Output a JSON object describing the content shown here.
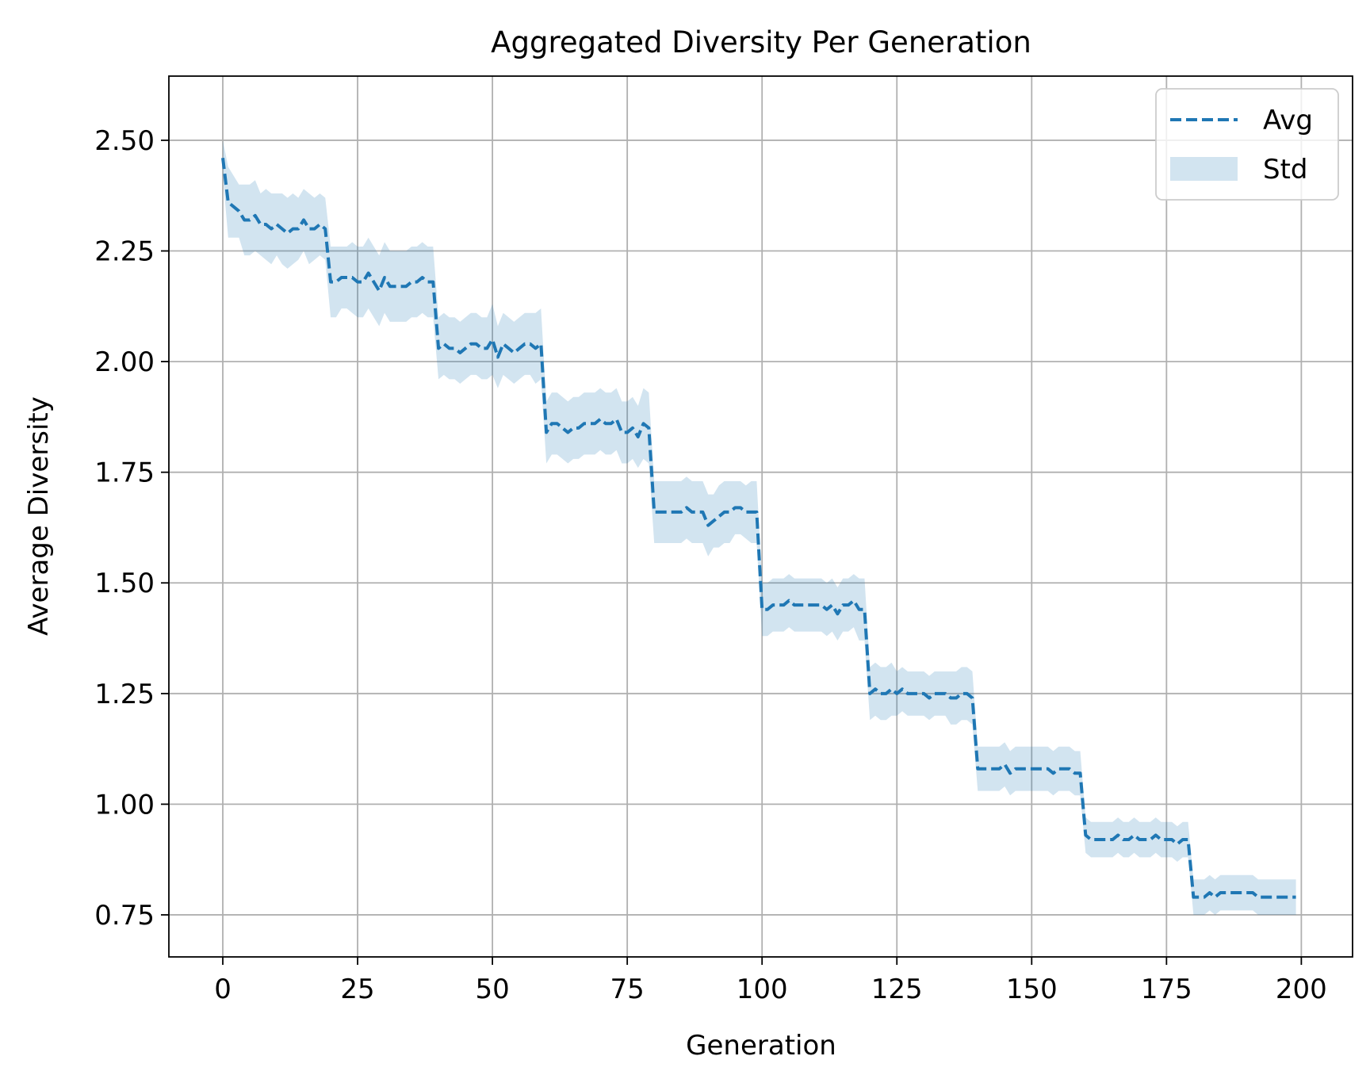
{
  "chart_data": {
    "type": "line",
    "title": "Aggregated Diversity Per Generation",
    "xlabel": "Generation",
    "ylabel": "Average Diversity",
    "xlim": [
      -10,
      209.5
    ],
    "ylim": [
      0.655,
      2.645
    ],
    "x_ticks": [
      0,
      25,
      50,
      75,
      100,
      125,
      150,
      175,
      200
    ],
    "x_tick_labels": [
      "0",
      "25",
      "50",
      "75",
      "100",
      "125",
      "150",
      "175",
      "200"
    ],
    "y_ticks": [
      0.75,
      1.0,
      1.25,
      1.5,
      1.75,
      2.0,
      2.25,
      2.5
    ],
    "y_tick_labels": [
      "0.75",
      "1.00",
      "1.25",
      "1.50",
      "1.75",
      "2.00",
      "2.25",
      "2.50"
    ],
    "grid": true,
    "legend_position": "top-right",
    "series": [
      {
        "name": "Avg",
        "style": "dashed-line",
        "color": "#1f77b4"
      },
      {
        "name": "Std",
        "style": "band",
        "color": "#1f77b4",
        "opacity": 0.2
      }
    ],
    "x_start": 0,
    "avg": [
      2.46,
      2.36,
      2.35,
      2.34,
      2.32,
      2.32,
      2.33,
      2.31,
      2.31,
      2.3,
      2.31,
      2.3,
      2.29,
      2.3,
      2.3,
      2.32,
      2.3,
      2.3,
      2.31,
      2.3,
      2.18,
      2.18,
      2.19,
      2.19,
      2.19,
      2.18,
      2.18,
      2.2,
      2.18,
      2.16,
      2.19,
      2.17,
      2.17,
      2.17,
      2.17,
      2.18,
      2.18,
      2.19,
      2.18,
      2.18,
      2.03,
      2.04,
      2.03,
      2.03,
      2.02,
      2.03,
      2.04,
      2.04,
      2.03,
      2.03,
      2.05,
      2.01,
      2.04,
      2.03,
      2.02,
      2.03,
      2.04,
      2.04,
      2.03,
      2.04,
      1.84,
      1.86,
      1.86,
      1.85,
      1.84,
      1.85,
      1.85,
      1.86,
      1.86,
      1.86,
      1.87,
      1.86,
      1.86,
      1.87,
      1.84,
      1.84,
      1.85,
      1.83,
      1.86,
      1.85,
      1.66,
      1.66,
      1.66,
      1.66,
      1.66,
      1.66,
      1.67,
      1.66,
      1.66,
      1.66,
      1.63,
      1.64,
      1.65,
      1.66,
      1.66,
      1.67,
      1.67,
      1.66,
      1.66,
      1.66,
      1.44,
      1.44,
      1.45,
      1.45,
      1.45,
      1.46,
      1.45,
      1.45,
      1.45,
      1.45,
      1.45,
      1.45,
      1.44,
      1.45,
      1.43,
      1.45,
      1.45,
      1.46,
      1.44,
      1.44,
      1.25,
      1.26,
      1.25,
      1.25,
      1.26,
      1.25,
      1.26,
      1.25,
      1.25,
      1.25,
      1.25,
      1.24,
      1.25,
      1.25,
      1.25,
      1.24,
      1.24,
      1.25,
      1.25,
      1.24,
      1.08,
      1.08,
      1.08,
      1.08,
      1.08,
      1.09,
      1.07,
      1.08,
      1.08,
      1.08,
      1.08,
      1.08,
      1.08,
      1.08,
      1.07,
      1.08,
      1.08,
      1.08,
      1.07,
      1.07,
      0.93,
      0.92,
      0.92,
      0.92,
      0.92,
      0.92,
      0.93,
      0.92,
      0.92,
      0.93,
      0.92,
      0.92,
      0.92,
      0.93,
      0.92,
      0.92,
      0.92,
      0.91,
      0.92,
      0.92,
      0.79,
      0.79,
      0.79,
      0.8,
      0.79,
      0.8,
      0.8,
      0.8,
      0.8,
      0.8,
      0.8,
      0.8,
      0.79,
      0.79,
      0.79,
      0.79,
      0.79,
      0.79,
      0.79,
      0.79
    ],
    "std": [
      0.04,
      0.08,
      0.07,
      0.06,
      0.08,
      0.08,
      0.08,
      0.07,
      0.08,
      0.08,
      0.07,
      0.08,
      0.08,
      0.08,
      0.07,
      0.07,
      0.08,
      0.07,
      0.07,
      0.07,
      0.08,
      0.08,
      0.07,
      0.07,
      0.08,
      0.08,
      0.08,
      0.08,
      0.08,
      0.08,
      0.08,
      0.08,
      0.08,
      0.08,
      0.08,
      0.08,
      0.08,
      0.08,
      0.08,
      0.08,
      0.07,
      0.07,
      0.07,
      0.07,
      0.07,
      0.07,
      0.07,
      0.07,
      0.07,
      0.07,
      0.08,
      0.07,
      0.07,
      0.07,
      0.07,
      0.07,
      0.07,
      0.07,
      0.08,
      0.08,
      0.07,
      0.07,
      0.07,
      0.07,
      0.07,
      0.07,
      0.07,
      0.07,
      0.07,
      0.07,
      0.07,
      0.07,
      0.07,
      0.07,
      0.07,
      0.07,
      0.07,
      0.07,
      0.08,
      0.08,
      0.07,
      0.07,
      0.07,
      0.07,
      0.07,
      0.07,
      0.07,
      0.07,
      0.07,
      0.07,
      0.07,
      0.06,
      0.07,
      0.07,
      0.07,
      0.06,
      0.06,
      0.06,
      0.07,
      0.07,
      0.06,
      0.06,
      0.06,
      0.06,
      0.06,
      0.06,
      0.06,
      0.06,
      0.06,
      0.06,
      0.06,
      0.06,
      0.06,
      0.06,
      0.06,
      0.06,
      0.06,
      0.06,
      0.07,
      0.07,
      0.06,
      0.06,
      0.06,
      0.06,
      0.06,
      0.05,
      0.05,
      0.05,
      0.05,
      0.05,
      0.05,
      0.05,
      0.05,
      0.05,
      0.05,
      0.06,
      0.06,
      0.06,
      0.06,
      0.06,
      0.05,
      0.05,
      0.05,
      0.05,
      0.05,
      0.05,
      0.05,
      0.05,
      0.05,
      0.05,
      0.05,
      0.05,
      0.05,
      0.05,
      0.05,
      0.05,
      0.05,
      0.05,
      0.05,
      0.05,
      0.04,
      0.04,
      0.04,
      0.04,
      0.04,
      0.04,
      0.04,
      0.04,
      0.04,
      0.04,
      0.04,
      0.04,
      0.04,
      0.04,
      0.04,
      0.04,
      0.04,
      0.04,
      0.04,
      0.04,
      0.04,
      0.04,
      0.04,
      0.04,
      0.04,
      0.04,
      0.04,
      0.04,
      0.04,
      0.04,
      0.04,
      0.04,
      0.04,
      0.04,
      0.04,
      0.04,
      0.04,
      0.04,
      0.04,
      0.04
    ]
  }
}
